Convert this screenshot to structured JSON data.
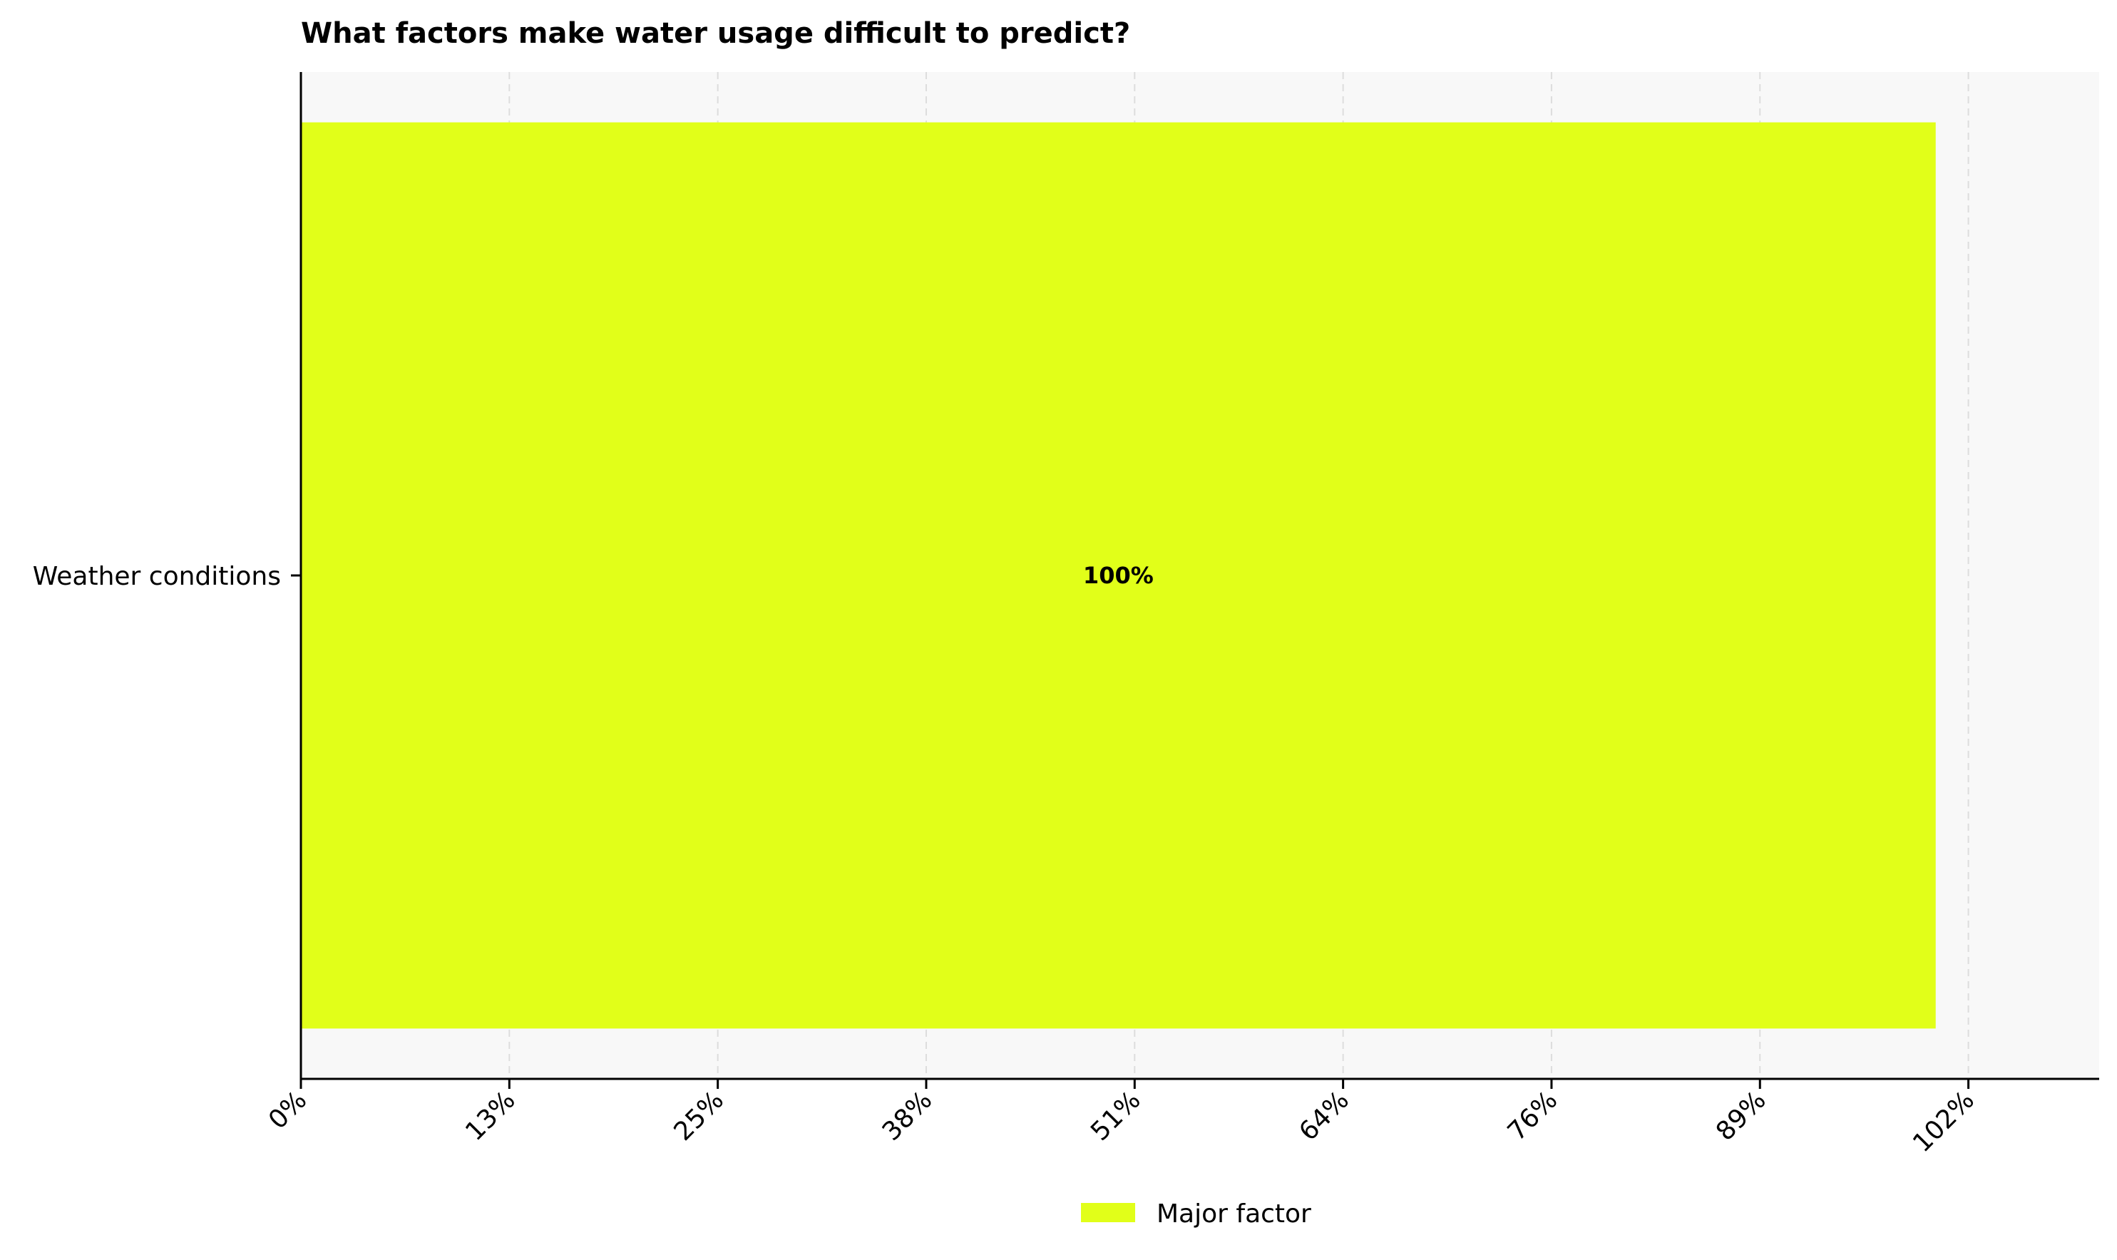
{
  "chart_data": {
    "type": "bar",
    "orientation": "horizontal",
    "title": "What factors make water usage difficult to predict?",
    "categories": [
      "Weather conditions"
    ],
    "series": [
      {
        "name": "Major factor",
        "values": [
          100
        ],
        "labels": [
          "100%"
        ]
      }
    ],
    "x_ticks": [
      0,
      12.75,
      25.5,
      38.25,
      51,
      63.75,
      76.5,
      89.25,
      102
    ],
    "x_tick_labels": [
      "0%",
      "13%",
      "25%",
      "38%",
      "51%",
      "64%",
      "76%",
      "89%",
      "102%"
    ],
    "xlim": [
      0,
      110
    ],
    "grid": "vertical dashed",
    "legend_position": "bottom-center",
    "colors": {
      "bar": "#e1ff19",
      "plot_background": "#f8f8f8",
      "grid": "#dddddd"
    }
  }
}
